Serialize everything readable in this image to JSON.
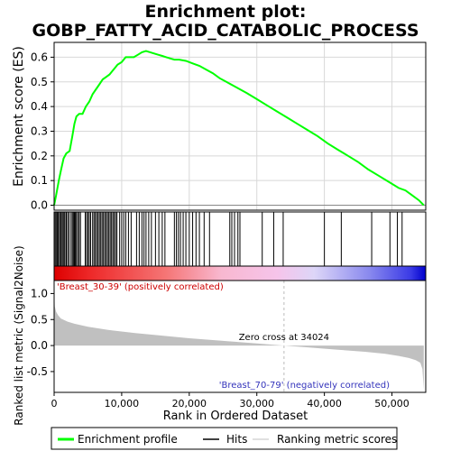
{
  "title_line1": "Enrichment plot:",
  "title_line2": "GOBP_FATTY_ACID_CATABOLIC_PROCESS",
  "chart_data": {
    "type": "line",
    "top_panel": {
      "ylabel": "Enrichment score (ES)",
      "ylim": [
        -0.02,
        0.66
      ],
      "yticks": [
        0.0,
        0.1,
        0.2,
        0.3,
        0.4,
        0.5,
        0.6
      ],
      "ytick_labels": [
        "0.0",
        "0.1",
        "0.2",
        "0.3",
        "0.4",
        "0.5",
        "0.6"
      ],
      "grid": true,
      "series": [
        {
          "name": "Enrichment profile",
          "color": "#00ff00",
          "x": [
            0,
            300,
            700,
            1000,
            1400,
            1800,
            2300,
            2700,
            3000,
            3300,
            3700,
            4200,
            4700,
            5200,
            5700,
            6200,
            6700,
            7200,
            7700,
            8200,
            8800,
            9400,
            10000,
            10600,
            11200,
            11800,
            12400,
            13000,
            13600,
            14200,
            14800,
            15400,
            16000,
            16600,
            17200,
            17800,
            18500,
            19500,
            20500,
            21500,
            22500,
            23500,
            24500,
            25500,
            26500,
            27500,
            28500,
            30000,
            31500,
            33000,
            34500,
            36000,
            37500,
            39000,
            40500,
            42000,
            43500,
            45000,
            46500,
            48000,
            49500,
            51000,
            52000,
            53000,
            54000,
            54700
          ],
          "y": [
            0.0,
            0.04,
            0.1,
            0.14,
            0.19,
            0.21,
            0.22,
            0.28,
            0.33,
            0.36,
            0.37,
            0.37,
            0.4,
            0.42,
            0.45,
            0.47,
            0.49,
            0.51,
            0.52,
            0.53,
            0.55,
            0.57,
            0.58,
            0.6,
            0.6,
            0.6,
            0.61,
            0.62,
            0.625,
            0.62,
            0.615,
            0.61,
            0.605,
            0.6,
            0.595,
            0.59,
            0.59,
            0.585,
            0.575,
            0.565,
            0.55,
            0.535,
            0.515,
            0.5,
            0.485,
            0.47,
            0.455,
            0.43,
            0.405,
            0.38,
            0.355,
            0.33,
            0.305,
            0.28,
            0.25,
            0.225,
            0.2,
            0.175,
            0.145,
            0.12,
            0.095,
            0.07,
            0.06,
            0.04,
            0.02,
            0.0
          ]
        }
      ]
    },
    "hits_panel": {
      "hit_positions": [
        150,
        300,
        450,
        600,
        800,
        950,
        1100,
        1300,
        1450,
        1600,
        1800,
        2000,
        2200,
        2500,
        2700,
        2850,
        3000,
        3150,
        3300,
        3500,
        3700,
        3900,
        4600,
        4800,
        5000,
        5200,
        5400,
        5700,
        5900,
        6100,
        6300,
        6500,
        6700,
        6900,
        7100,
        7300,
        7500,
        7700,
        7900,
        8100,
        8300,
        8500,
        8700,
        8900,
        9100,
        9300,
        9700,
        10000,
        10300,
        10600,
        11000,
        11400,
        12200,
        12600,
        13000,
        13300,
        13600,
        14000,
        14400,
        15000,
        15500,
        16000,
        16400,
        17800,
        18100,
        18400,
        18700,
        19100,
        19500,
        20000,
        20500,
        21000,
        21500,
        22200,
        23000,
        26000,
        26300,
        26700,
        27200,
        27500,
        30800,
        32500,
        33900,
        40000,
        42500,
        47000,
        49700,
        50800,
        51500
      ]
    },
    "gradient_band": {
      "positive_color": "#ee0000",
      "negative_color": "#0000ee"
    },
    "bottom_panel": {
      "ylabel": "Ranked list metric (Signal2Noise)",
      "xlabel": "Rank in Ordered Dataset",
      "xlim": [
        0,
        55000
      ],
      "xticks": [
        0,
        10000,
        20000,
        30000,
        40000,
        50000
      ],
      "xtick_labels": [
        "0",
        "10,000",
        "20,000",
        "30,000",
        "40,000",
        "50,000"
      ],
      "ylim": [
        -0.9,
        1.25
      ],
      "yticks": [
        -0.5,
        0.0,
        0.5,
        1.0
      ],
      "ytick_labels": [
        "-0.5",
        "0.0",
        "0.5",
        "1.0"
      ],
      "metric_x": [
        0,
        100,
        300,
        600,
        1000,
        2000,
        3000,
        5000,
        8000,
        12000,
        16000,
        20000,
        25000,
        30000,
        34024,
        38000,
        42000,
        46000,
        49000,
        51000,
        52500,
        53500,
        54200,
        54500,
        54700
      ],
      "metric_y": [
        1.05,
        0.75,
        0.65,
        0.58,
        0.52,
        0.46,
        0.42,
        0.36,
        0.3,
        0.24,
        0.19,
        0.14,
        0.09,
        0.04,
        0.0,
        -0.04,
        -0.08,
        -0.12,
        -0.16,
        -0.2,
        -0.24,
        -0.28,
        -0.33,
        -0.45,
        -0.85
      ],
      "fill_color": "#c0c0c0",
      "zero_cross_x": 34024,
      "zero_cross_label": "Zero cross at 34024",
      "positive_label": "'Breast_30-39' (positively correlated)",
      "negative_label": "'Breast_70-79' (negatively correlated)",
      "positive_label_color": "#cc0000",
      "negative_label_color": "#3333bb"
    },
    "legend": {
      "placement": "bottom",
      "items": [
        {
          "label": "Enrichment profile",
          "color": "#00ff00",
          "style": "line-green"
        },
        {
          "label": "Hits",
          "color": "#000000",
          "style": "line-black"
        },
        {
          "label": "Ranking metric scores",
          "color": "#c0c0c0",
          "style": "line-gray"
        }
      ]
    }
  }
}
